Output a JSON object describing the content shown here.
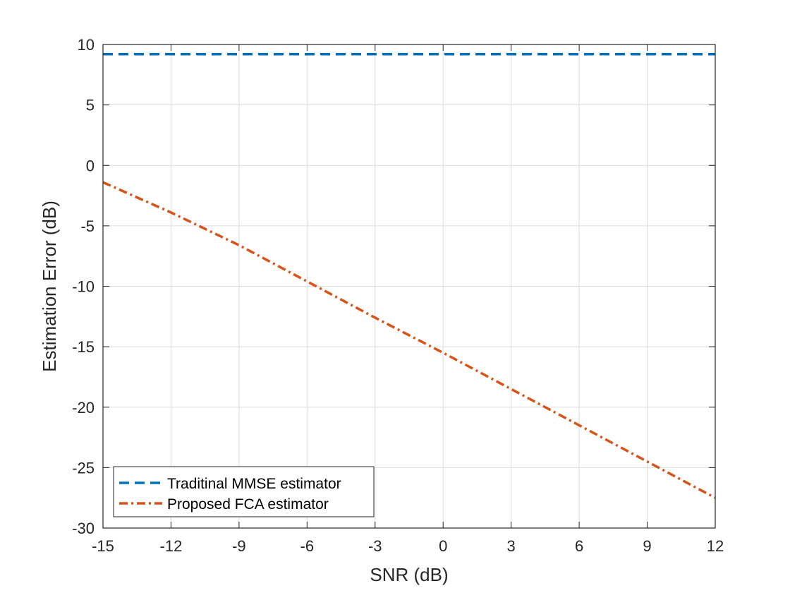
{
  "chart_data": {
    "type": "line",
    "title": "",
    "xlabel": "SNR (dB)",
    "ylabel": "Estimation Error (dB)",
    "xlim": [
      -15,
      12
    ],
    "ylim": [
      -30,
      10
    ],
    "xticks": [
      -15,
      -12,
      -9,
      -6,
      -3,
      0,
      3,
      6,
      9,
      12
    ],
    "yticks": [
      -30,
      -25,
      -20,
      -15,
      -10,
      -5,
      0,
      5,
      10
    ],
    "xtick_labels": [
      "-15",
      "-12",
      "-9",
      "-6",
      "-3",
      "0",
      "3",
      "6",
      "9",
      "12"
    ],
    "ytick_labels": [
      "-30",
      "-25",
      "-20",
      "-15",
      "-10",
      "-5",
      "0",
      "5",
      "10"
    ],
    "grid": true,
    "legend_position": "bottom-left",
    "series": [
      {
        "name": "Traditinal MMSE estimator",
        "color": "#0072BD",
        "style": "dashed",
        "x": [
          -15,
          -12,
          -9,
          -6,
          -3,
          0,
          3,
          6,
          9,
          12
        ],
        "y": [
          9.2,
          9.2,
          9.2,
          9.2,
          9.2,
          9.2,
          9.2,
          9.2,
          9.2,
          9.2
        ]
      },
      {
        "name": "Proposed FCA estimator",
        "color": "#D95319",
        "style": "dashdot",
        "x": [
          -15,
          -12,
          -9,
          -6,
          -3,
          0,
          3,
          6,
          9,
          12
        ],
        "y": [
          -1.4,
          -3.9,
          -6.6,
          -9.6,
          -12.6,
          -15.5,
          -18.5,
          -21.5,
          -24.5,
          -27.5
        ]
      }
    ]
  }
}
